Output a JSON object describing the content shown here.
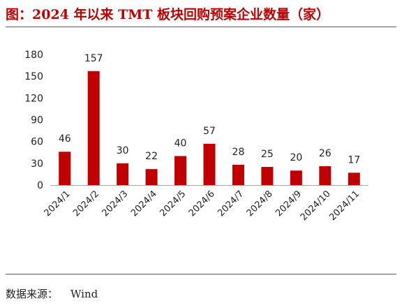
{
  "title": "图：2024 年以来 TMT 板块回购预案企业数量（家）",
  "source": {
    "label": "数据来源：",
    "value": "Wind"
  },
  "chart_data": {
    "type": "bar",
    "title": "图：2024 年以来 TMT 板块回购预案企业数量（家）",
    "xlabel": "",
    "ylabel": "",
    "categories": [
      "2024/1",
      "2024/2",
      "2024/3",
      "2024/4",
      "2024/5",
      "2024/6",
      "2024/7",
      "2024/8",
      "2024/9",
      "2024/10",
      "2024/11"
    ],
    "values": [
      46,
      157,
      30,
      22,
      40,
      57,
      28,
      25,
      20,
      26,
      17
    ],
    "yticks": [
      0,
      30,
      60,
      90,
      120,
      150,
      180
    ],
    "ylim": [
      0,
      180
    ],
    "bar_color": "#c00000",
    "grid": false,
    "legend": "none"
  }
}
